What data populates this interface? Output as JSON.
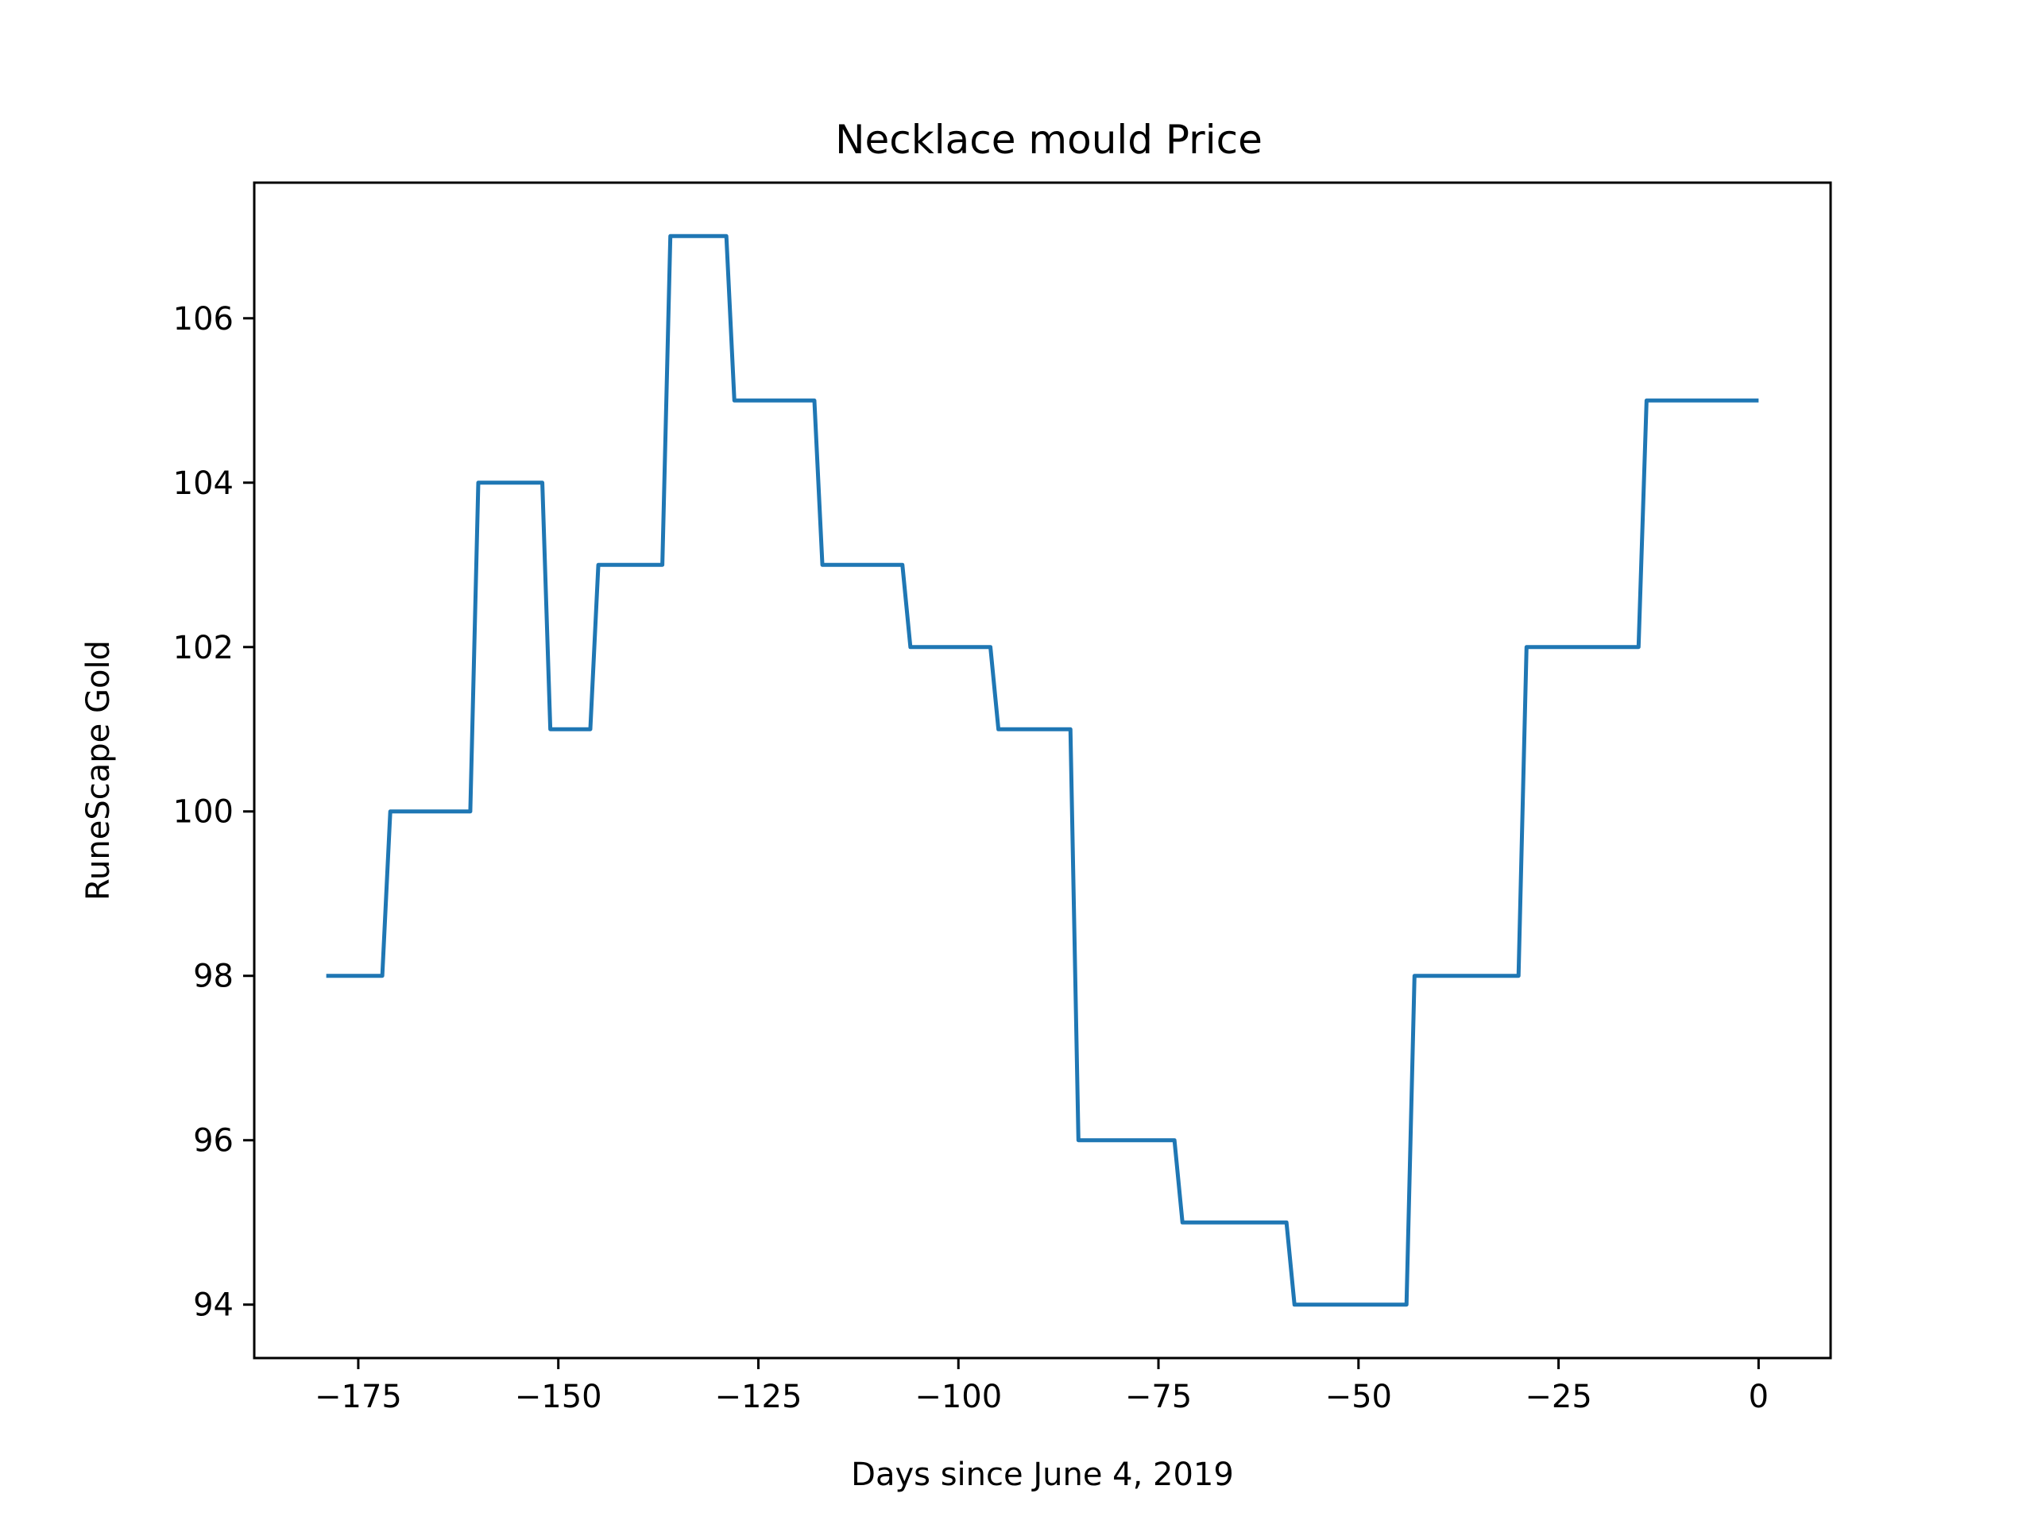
{
  "chart_data": {
    "type": "line",
    "title": "Necklace mould Price",
    "xlabel": "Days since June 4, 2019",
    "ylabel": "RuneScape Gold",
    "xlim": [
      -188,
      9
    ],
    "ylim": [
      93.35,
      107.65
    ],
    "xticks": [
      -175,
      -150,
      -125,
      -100,
      -75,
      -50,
      -25,
      0
    ],
    "xtick_labels": [
      "−175",
      "−150",
      "−125",
      "−100",
      "−75",
      "−50",
      "−25",
      "0"
    ],
    "yticks": [
      94,
      96,
      98,
      100,
      102,
      104,
      106
    ],
    "ytick_labels": [
      "94",
      "96",
      "98",
      "100",
      "102",
      "104",
      "106"
    ],
    "grid": false,
    "line_color": "#1f77b4",
    "series": [
      {
        "x": [
          -179,
          -172,
          -171,
          -161,
          -160,
          -152,
          -151,
          -146,
          -145,
          -137,
          -136,
          -129,
          -128,
          -118,
          -117,
          -107,
          -106,
          -96,
          -95,
          -86,
          -85,
          -73,
          -72,
          -59,
          -58,
          -44,
          -43,
          -30,
          -29,
          -15,
          -14,
          0
        ],
        "y": [
          98,
          98,
          100,
          100,
          104,
          104,
          101,
          101,
          103,
          103,
          107,
          107,
          105,
          105,
          103,
          103,
          102,
          102,
          101,
          101,
          96,
          96,
          95,
          95,
          94,
          94,
          98,
          98,
          102,
          102,
          105,
          105
        ]
      }
    ]
  }
}
